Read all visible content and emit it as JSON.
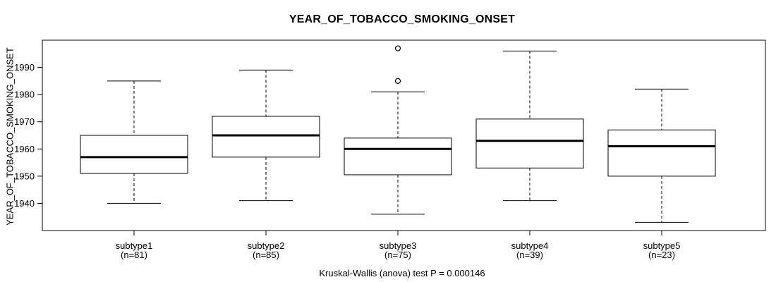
{
  "chart_data": {
    "type": "boxplot",
    "title": "YEAR_OF_TOBACCO_SMOKING_ONSET",
    "ylabel": "YEAR_OF_TOBACCO_SMOKING_ONSET",
    "xlabel": "",
    "annotation": "Kruskal-Wallis (anova) test P = 0.000146",
    "categories": [
      "subtype1",
      "subtype2",
      "subtype3",
      "subtype4",
      "subtype5"
    ],
    "n_labels": [
      "(n=81)",
      "(n=85)",
      "(n=75)",
      "(n=39)",
      "(n=23)"
    ],
    "series": [
      {
        "name": "subtype1",
        "n": 81,
        "whisker_low": 1940,
        "q1": 1951,
        "median": 1957,
        "q3": 1965,
        "whisker_high": 1985,
        "outliers": []
      },
      {
        "name": "subtype2",
        "n": 85,
        "whisker_low": 1941,
        "q1": 1957,
        "median": 1965,
        "q3": 1972,
        "whisker_high": 1989,
        "outliers": []
      },
      {
        "name": "subtype3",
        "n": 75,
        "whisker_low": 1936,
        "q1": 1950.5,
        "median": 1960,
        "q3": 1964,
        "whisker_high": 1981,
        "outliers": [
          1985,
          1997
        ]
      },
      {
        "name": "subtype4",
        "n": 39,
        "whisker_low": 1941,
        "q1": 1953,
        "median": 1963,
        "q3": 1971,
        "whisker_high": 1996,
        "outliers": []
      },
      {
        "name": "subtype5",
        "n": 23,
        "whisker_low": 1933,
        "q1": 1950,
        "median": 1961,
        "q3": 1967,
        "whisker_high": 1982,
        "outliers": []
      }
    ],
    "ylim": [
      1930,
      2000
    ],
    "yticks": [
      1940,
      1950,
      1960,
      1970,
      1980,
      1990
    ],
    "grid": false,
    "legend": "none"
  },
  "colors": {
    "line": "#000000",
    "text": "#000000",
    "box_fill": "#ffffff",
    "background": "#ffffff"
  }
}
